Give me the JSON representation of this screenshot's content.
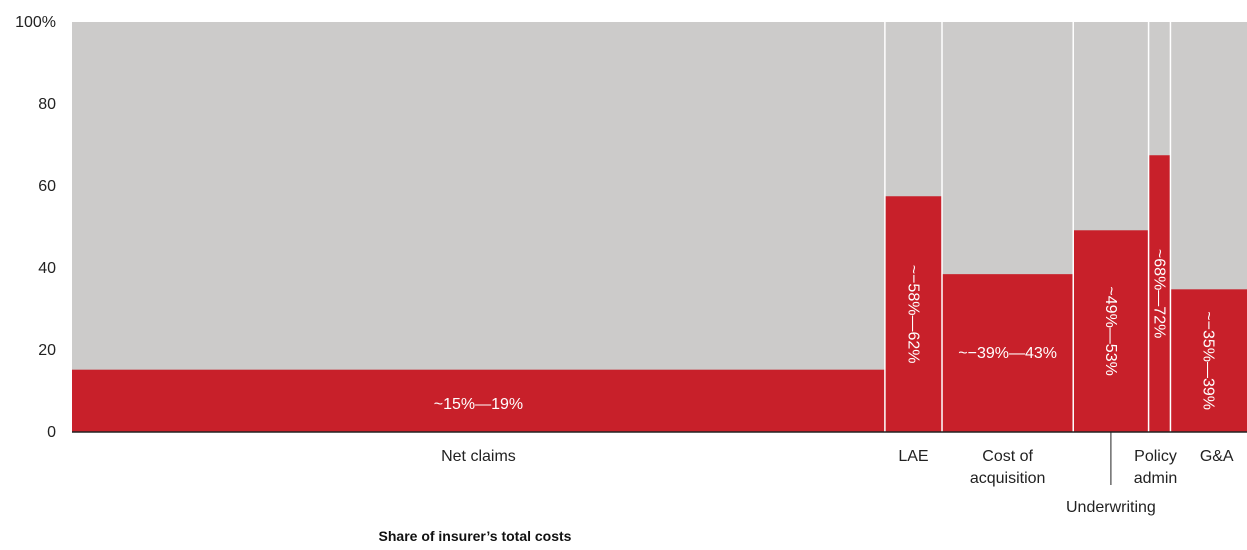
{
  "chart_data": {
    "type": "bar",
    "variant": "marimekko",
    "xlabel": "Share of insurer’s total costs",
    "ylabel": "",
    "ylim": [
      0,
      100
    ],
    "y_ticks": [
      "0",
      "20",
      "40",
      "60",
      "80",
      "100%"
    ],
    "y_tick_values": [
      0,
      20,
      40,
      60,
      80,
      100
    ],
    "grid": false,
    "colors": {
      "highlight": "#c8202a",
      "remainder": "#cccbca",
      "axis": "#222222"
    },
    "categories": [
      {
        "name": "Net claims",
        "label_lines": [
          "Net claims"
        ],
        "share": 66.9,
        "value": 15.2,
        "value_label": "~15%—19%",
        "label_vertical": false
      },
      {
        "name": "LAE",
        "label_lines": [
          "LAE"
        ],
        "share": 4.7,
        "value": 57.5,
        "value_label": "~−58%—62%",
        "label_vertical": true
      },
      {
        "name": "Cost of acquisition",
        "label_lines": [
          "Cost of",
          "acquisition"
        ],
        "share": 10.8,
        "value": 38.5,
        "value_label": "~−39%—43%",
        "label_vertical": false
      },
      {
        "name": "Underwriting",
        "label_lines": [
          "Underwriting"
        ],
        "share": 6.2,
        "value": 49.2,
        "value_label": "~49%—53%",
        "label_vertical": true,
        "label_leader": true
      },
      {
        "name": "Policy admin",
        "label_lines": [
          "Policy",
          "admin"
        ],
        "share": 1.8,
        "value": 67.5,
        "value_label": "~68%—72%",
        "label_vertical": true
      },
      {
        "name": "G&A",
        "label_lines": [
          "G&A"
        ],
        "share": 6.3,
        "value": 34.8,
        "value_label": "~−35%—39%",
        "label_vertical": true
      }
    ]
  }
}
